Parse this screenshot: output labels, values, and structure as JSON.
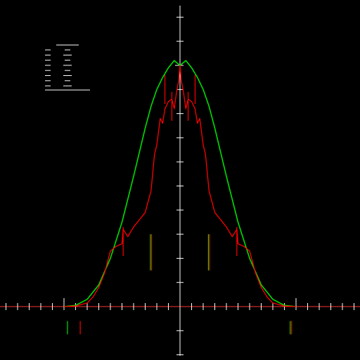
{
  "chart_data": {
    "type": "line",
    "title": "",
    "xlabel": "",
    "ylabel": "",
    "xlim": [
      -15,
      15
    ],
    "ylim": [
      -2,
      12
    ],
    "grid": false,
    "colors": {
      "background": "#000000",
      "axes": "#ffffff",
      "baseline": "#ff3333",
      "series_smooth": "#00dd00",
      "series_detailed": "#ff0000"
    },
    "series": [
      {
        "color": "#00dd00",
        "x": [
          -10,
          -9,
          -8,
          -7,
          -6,
          -5,
          -4,
          -3,
          -2.5,
          -2,
          -1.5,
          -1,
          -0.5,
          0,
          0.5,
          1,
          1.5,
          2,
          2.5,
          3,
          4,
          5,
          6,
          7,
          8,
          9,
          10
        ],
        "y": [
          0,
          0.05,
          0.3,
          0.9,
          2.0,
          3.5,
          5.4,
          7.4,
          8.3,
          9.0,
          9.5,
          9.9,
          10.2,
          10.0,
          10.2,
          9.9,
          9.5,
          9.0,
          8.3,
          7.4,
          5.4,
          3.5,
          2.0,
          0.9,
          0.3,
          0.05,
          0
        ]
      },
      {
        "color": "#ff0000",
        "x": [
          -10,
          -9,
          -8,
          -7.5,
          -7,
          -6.5,
          -6,
          -5.5,
          -5,
          -4.9,
          -4.5,
          -4,
          -3.5,
          -3,
          -2.5,
          -2.2,
          -2,
          -1.7,
          -1.5,
          -1.3,
          -1,
          -0.7,
          -0.5,
          -0.3,
          -0.1,
          0,
          0.1,
          0.3,
          0.5,
          0.7,
          1,
          1.3,
          1.5,
          1.7,
          2,
          2.2,
          2.5,
          3,
          3.5,
          4,
          4.5,
          4.9,
          5,
          5.5,
          6,
          6.5,
          7,
          7.5,
          8,
          9,
          10
        ],
        "y": [
          0,
          0.02,
          0.15,
          0.4,
          0.8,
          1.4,
          2.3,
          2.5,
          2.6,
          3.2,
          2.9,
          3.3,
          3.6,
          3.9,
          4.8,
          6.3,
          6.7,
          7.8,
          7.6,
          8.2,
          8.5,
          8.6,
          8.2,
          8.9,
          9.4,
          10.0,
          9.4,
          8.9,
          8.2,
          8.6,
          8.5,
          8.2,
          7.6,
          7.8,
          6.7,
          6.3,
          4.8,
          3.9,
          3.6,
          3.3,
          2.9,
          3.2,
          2.6,
          2.5,
          2.3,
          1.4,
          0.8,
          0.4,
          0.15,
          0.02,
          0
        ]
      }
    ],
    "spikes": [
      {
        "x": -4.9,
        "y": 3.3,
        "color": "#ff0000"
      },
      {
        "x": 4.9,
        "y": 3.3,
        "color": "#ff0000"
      },
      {
        "x": -1.3,
        "y": 9.6,
        "color": "#ff0000"
      },
      {
        "x": 1.3,
        "y": 9.6,
        "color": "#ff0000"
      },
      {
        "x": -0.7,
        "y": 8.9,
        "color": "#ff0000"
      },
      {
        "x": 0.7,
        "y": 8.9,
        "color": "#ff0000"
      }
    ],
    "markers": [
      {
        "x": -2.55,
        "y0": 1.5,
        "y1": 3.0,
        "color": "#00dd00"
      },
      {
        "x": -2.45,
        "y0": 1.5,
        "y1": 3.0,
        "color": "#ff0000"
      },
      {
        "x": 2.45,
        "y0": 1.5,
        "y1": 3.0,
        "color": "#00dd00"
      },
      {
        "x": 2.55,
        "y0": 1.5,
        "y1": 3.0,
        "color": "#ff0000"
      },
      {
        "x": -9.7,
        "y0": -1.15,
        "y1": -0.6,
        "color": "#00dd00"
      },
      {
        "x": -8.6,
        "y0": -1.15,
        "y1": -0.6,
        "color": "#ff0000"
      },
      {
        "x": 9.5,
        "y0": -1.15,
        "y1": -0.6,
        "color": "#00dd00"
      },
      {
        "x": 9.62,
        "y0": -1.15,
        "y1": -0.6,
        "color": "#ff0000"
      }
    ],
    "legend": {
      "placement": "top-left",
      "entries": 8,
      "color": "#ffffff"
    }
  }
}
